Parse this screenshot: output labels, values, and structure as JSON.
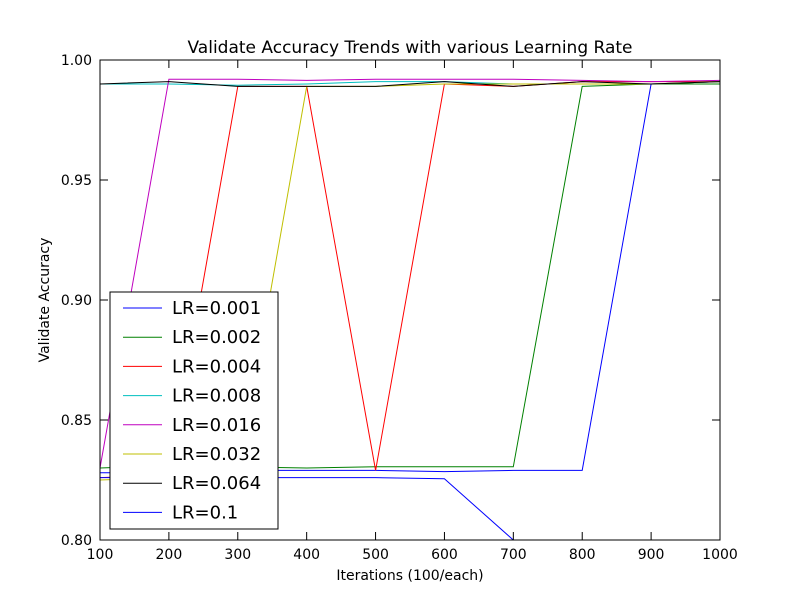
{
  "chart_data": {
    "type": "line",
    "title": "Validate Accuracy Trends with various Learning Rate",
    "xlabel": "Iterations (100/each)",
    "ylabel": "Validate Accuracy",
    "xlim": [
      100,
      1000
    ],
    "ylim": [
      0.8,
      1.0
    ],
    "x_ticks": [
      100,
      200,
      300,
      400,
      500,
      600,
      700,
      800,
      900,
      1000
    ],
    "x_tick_labels": [
      "100",
      "200",
      "300",
      "400",
      "500",
      "600",
      "700",
      "800",
      "900",
      "1000"
    ],
    "y_ticks": [
      0.8,
      0.85,
      0.9,
      0.95,
      1.0
    ],
    "y_tick_labels": [
      "0.80",
      "0.85",
      "0.90",
      "0.95",
      "1.00"
    ],
    "grid": false,
    "legend_position": "lower-left",
    "x": [
      100,
      200,
      300,
      400,
      500,
      600,
      700,
      800,
      900,
      1000
    ],
    "series": [
      {
        "name": "LR=0.001",
        "color": "#0000ff",
        "values": [
          0.828,
          0.828,
          0.829,
          0.829,
          0.829,
          0.8285,
          0.829,
          0.829,
          0.99,
          0.991
        ]
      },
      {
        "name": "LR=0.002",
        "color": "#008000",
        "values": [
          0.83,
          0.831,
          0.8305,
          0.83,
          0.8305,
          0.8305,
          0.8305,
          0.989,
          0.99,
          0.99
        ]
      },
      {
        "name": "LR=0.004",
        "color": "#ff0000",
        "values": [
          0.826,
          0.827,
          0.989,
          0.989,
          0.829,
          0.99,
          0.989,
          0.991,
          0.991,
          0.991
        ]
      },
      {
        "name": "LR=0.008",
        "color": "#00bfbf",
        "values": [
          0.99,
          0.99,
          0.9895,
          0.99,
          0.991,
          0.991,
          0.99,
          0.99,
          0.99,
          0.991
        ]
      },
      {
        "name": "LR=0.016",
        "color": "#bf00bf",
        "values": [
          0.83,
          0.992,
          0.992,
          0.9915,
          0.992,
          0.992,
          0.992,
          0.9915,
          0.991,
          0.9915
        ]
      },
      {
        "name": "LR=0.032",
        "color": "#bfbf00",
        "values": [
          0.825,
          0.826,
          0.826,
          0.989,
          0.989,
          0.99,
          0.99,
          0.99,
          0.99,
          0.991
        ]
      },
      {
        "name": "LR=0.064",
        "color": "#000000",
        "values": [
          0.99,
          0.991,
          0.989,
          0.989,
          0.989,
          0.991,
          0.989,
          0.991,
          0.99,
          0.991
        ]
      },
      {
        "name": "LR=0.1",
        "color": "#0000ff",
        "values": [
          0.826,
          0.826,
          0.826,
          0.826,
          0.826,
          0.8255,
          0.8,
          0.8,
          0.8,
          0.8
        ]
      }
    ]
  }
}
